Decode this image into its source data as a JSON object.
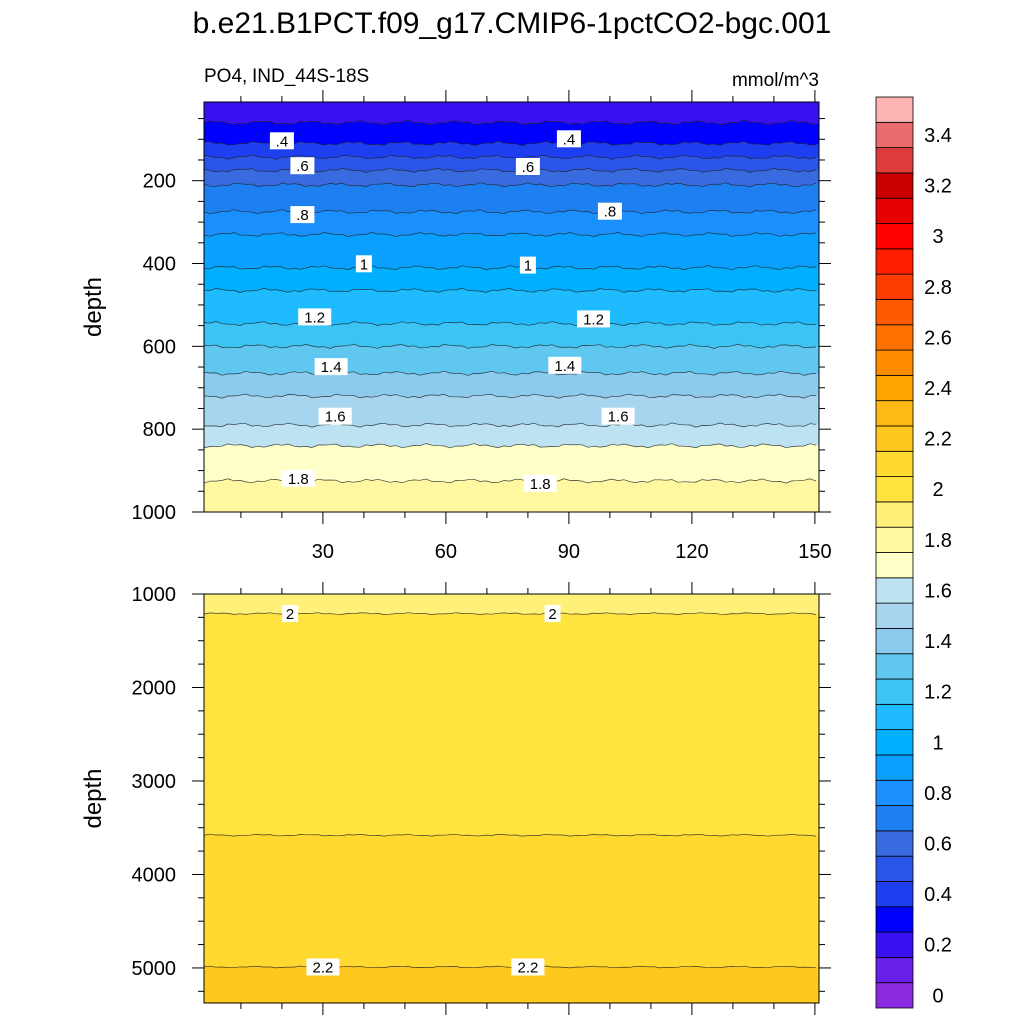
{
  "title": "b.e21.B1PCT.f09_g17.CMIP6-1pctCO2-bgc.001",
  "chart_data": {
    "type": "contour",
    "variable": "PO4",
    "region": "IND_44S-18S",
    "units": "mmol/m^3",
    "x": {
      "range": [
        1,
        151
      ],
      "ticks": [
        30,
        60,
        90,
        120,
        150
      ],
      "tick_labels": [
        "30",
        "60",
        "90",
        "120",
        "150"
      ]
    },
    "panels": [
      {
        "name": "upper",
        "ylabel": "depth",
        "depth_range": [
          10,
          1000
        ],
        "y_ticks": [
          200,
          400,
          600,
          800,
          1000
        ],
        "y_tick_labels": [
          "200",
          "400",
          "600",
          "800",
          "1000"
        ],
        "contours": [
          {
            "level": 0.3,
            "depth": 60
          },
          {
            "level": 0.4,
            "depth": 110
          },
          {
            "level": 0.5,
            "depth": 143
          },
          {
            "level": 0.6,
            "depth": 175
          },
          {
            "level": 0.7,
            "depth": 210
          },
          {
            "level": 0.8,
            "depth": 275
          },
          {
            "level": 0.9,
            "depth": 330
          },
          {
            "level": 1.0,
            "depth": 410
          },
          {
            "level": 1.1,
            "depth": 465
          },
          {
            "level": 1.2,
            "depth": 545
          },
          {
            "level": 1.3,
            "depth": 600
          },
          {
            "level": 1.4,
            "depth": 665
          },
          {
            "level": 1.5,
            "depth": 720
          },
          {
            "level": 1.6,
            "depth": 790
          },
          {
            "level": 1.7,
            "depth": 840
          },
          {
            "level": 1.8,
            "depth": 925
          }
        ],
        "labels": [
          {
            "text": ".4",
            "x": 20,
            "depth": 105
          },
          {
            "text": ".4",
            "x": 90,
            "depth": 100
          },
          {
            "text": ".6",
            "x": 25,
            "depth": 165
          },
          {
            "text": ".6",
            "x": 80,
            "depth": 167
          },
          {
            "text": ".8",
            "x": 25,
            "depth": 283
          },
          {
            "text": ".8",
            "x": 100,
            "depth": 275
          },
          {
            "text": "1",
            "x": 40,
            "depth": 402
          },
          {
            "text": "1",
            "x": 80,
            "depth": 405
          },
          {
            "text": "1.2",
            "x": 28,
            "depth": 530
          },
          {
            "text": "1.2",
            "x": 96,
            "depth": 535
          },
          {
            "text": "1.4",
            "x": 32,
            "depth": 650
          },
          {
            "text": "1.4",
            "x": 89,
            "depth": 647
          },
          {
            "text": "1.6",
            "x": 33,
            "depth": 770
          },
          {
            "text": "1.6",
            "x": 102,
            "depth": 770
          },
          {
            "text": "1.8",
            "x": 24,
            "depth": 920
          },
          {
            "text": "1.8",
            "x": 83,
            "depth": 932
          }
        ]
      },
      {
        "name": "lower",
        "ylabel": "depth",
        "depth_range": [
          1000,
          5375
        ],
        "y_ticks": [
          1000,
          2000,
          3000,
          4000,
          5000
        ],
        "y_tick_labels": [
          "1000",
          "2000",
          "3000",
          "4000",
          "5000"
        ],
        "contours": [
          {
            "level": 2.0,
            "depth": 1210
          },
          {
            "level": 2.1,
            "depth": 3580
          },
          {
            "level": 2.2,
            "depth": 4990
          }
        ],
        "labels": [
          {
            "text": "2",
            "x": 22,
            "depth": 1215
          },
          {
            "text": "2",
            "x": 86,
            "depth": 1215
          },
          {
            "text": "2.2",
            "x": 30,
            "depth": 4995
          },
          {
            "text": "2.2",
            "x": 80,
            "depth": 4995
          }
        ]
      }
    ],
    "colorbar": {
      "levels": [
        0,
        0.1,
        0.2,
        0.3,
        0.4,
        0.5,
        0.6,
        0.7,
        0.8,
        0.9,
        1.0,
        1.1,
        1.2,
        1.3,
        1.4,
        1.5,
        1.6,
        1.7,
        1.8,
        1.9,
        2.0,
        2.1,
        2.2,
        2.3,
        2.4,
        2.5,
        2.6,
        2.7,
        2.8,
        2.9,
        3.0,
        3.1,
        3.2,
        3.3,
        3.4,
        3.5
      ],
      "tick_labels": [
        "0",
        "0.2",
        "0.4",
        "0.6",
        "0.8",
        "1",
        "1.2",
        "1.4",
        "1.6",
        "1.8",
        "2",
        "2.2",
        "2.4",
        "2.6",
        "2.8",
        "3",
        "3.2",
        "3.4"
      ],
      "colors": [
        "#8a2be2",
        "#6a1fe8",
        "#3a10f0",
        "#0000ff",
        "#1e3ff0",
        "#2b55e6",
        "#3a6ae0",
        "#1e7ff0",
        "#1a90ff",
        "#0aa0ff",
        "#00b0ff",
        "#1ebcff",
        "#3cc4f5",
        "#60c8f0",
        "#8dcbee",
        "#a7d5ef",
        "#bde3f3",
        "#ffffc8",
        "#fff8a0",
        "#fff07a",
        "#ffe440",
        "#ffd830",
        "#ffc81e",
        "#ffb914",
        "#ffa500",
        "#ff8c00",
        "#ff7000",
        "#ff5a00",
        "#ff3c00",
        "#ff1e00",
        "#ff0000",
        "#e60000",
        "#cc0000",
        "#dc3c3c",
        "#e86c6c",
        "#ffb4b4"
      ]
    }
  }
}
